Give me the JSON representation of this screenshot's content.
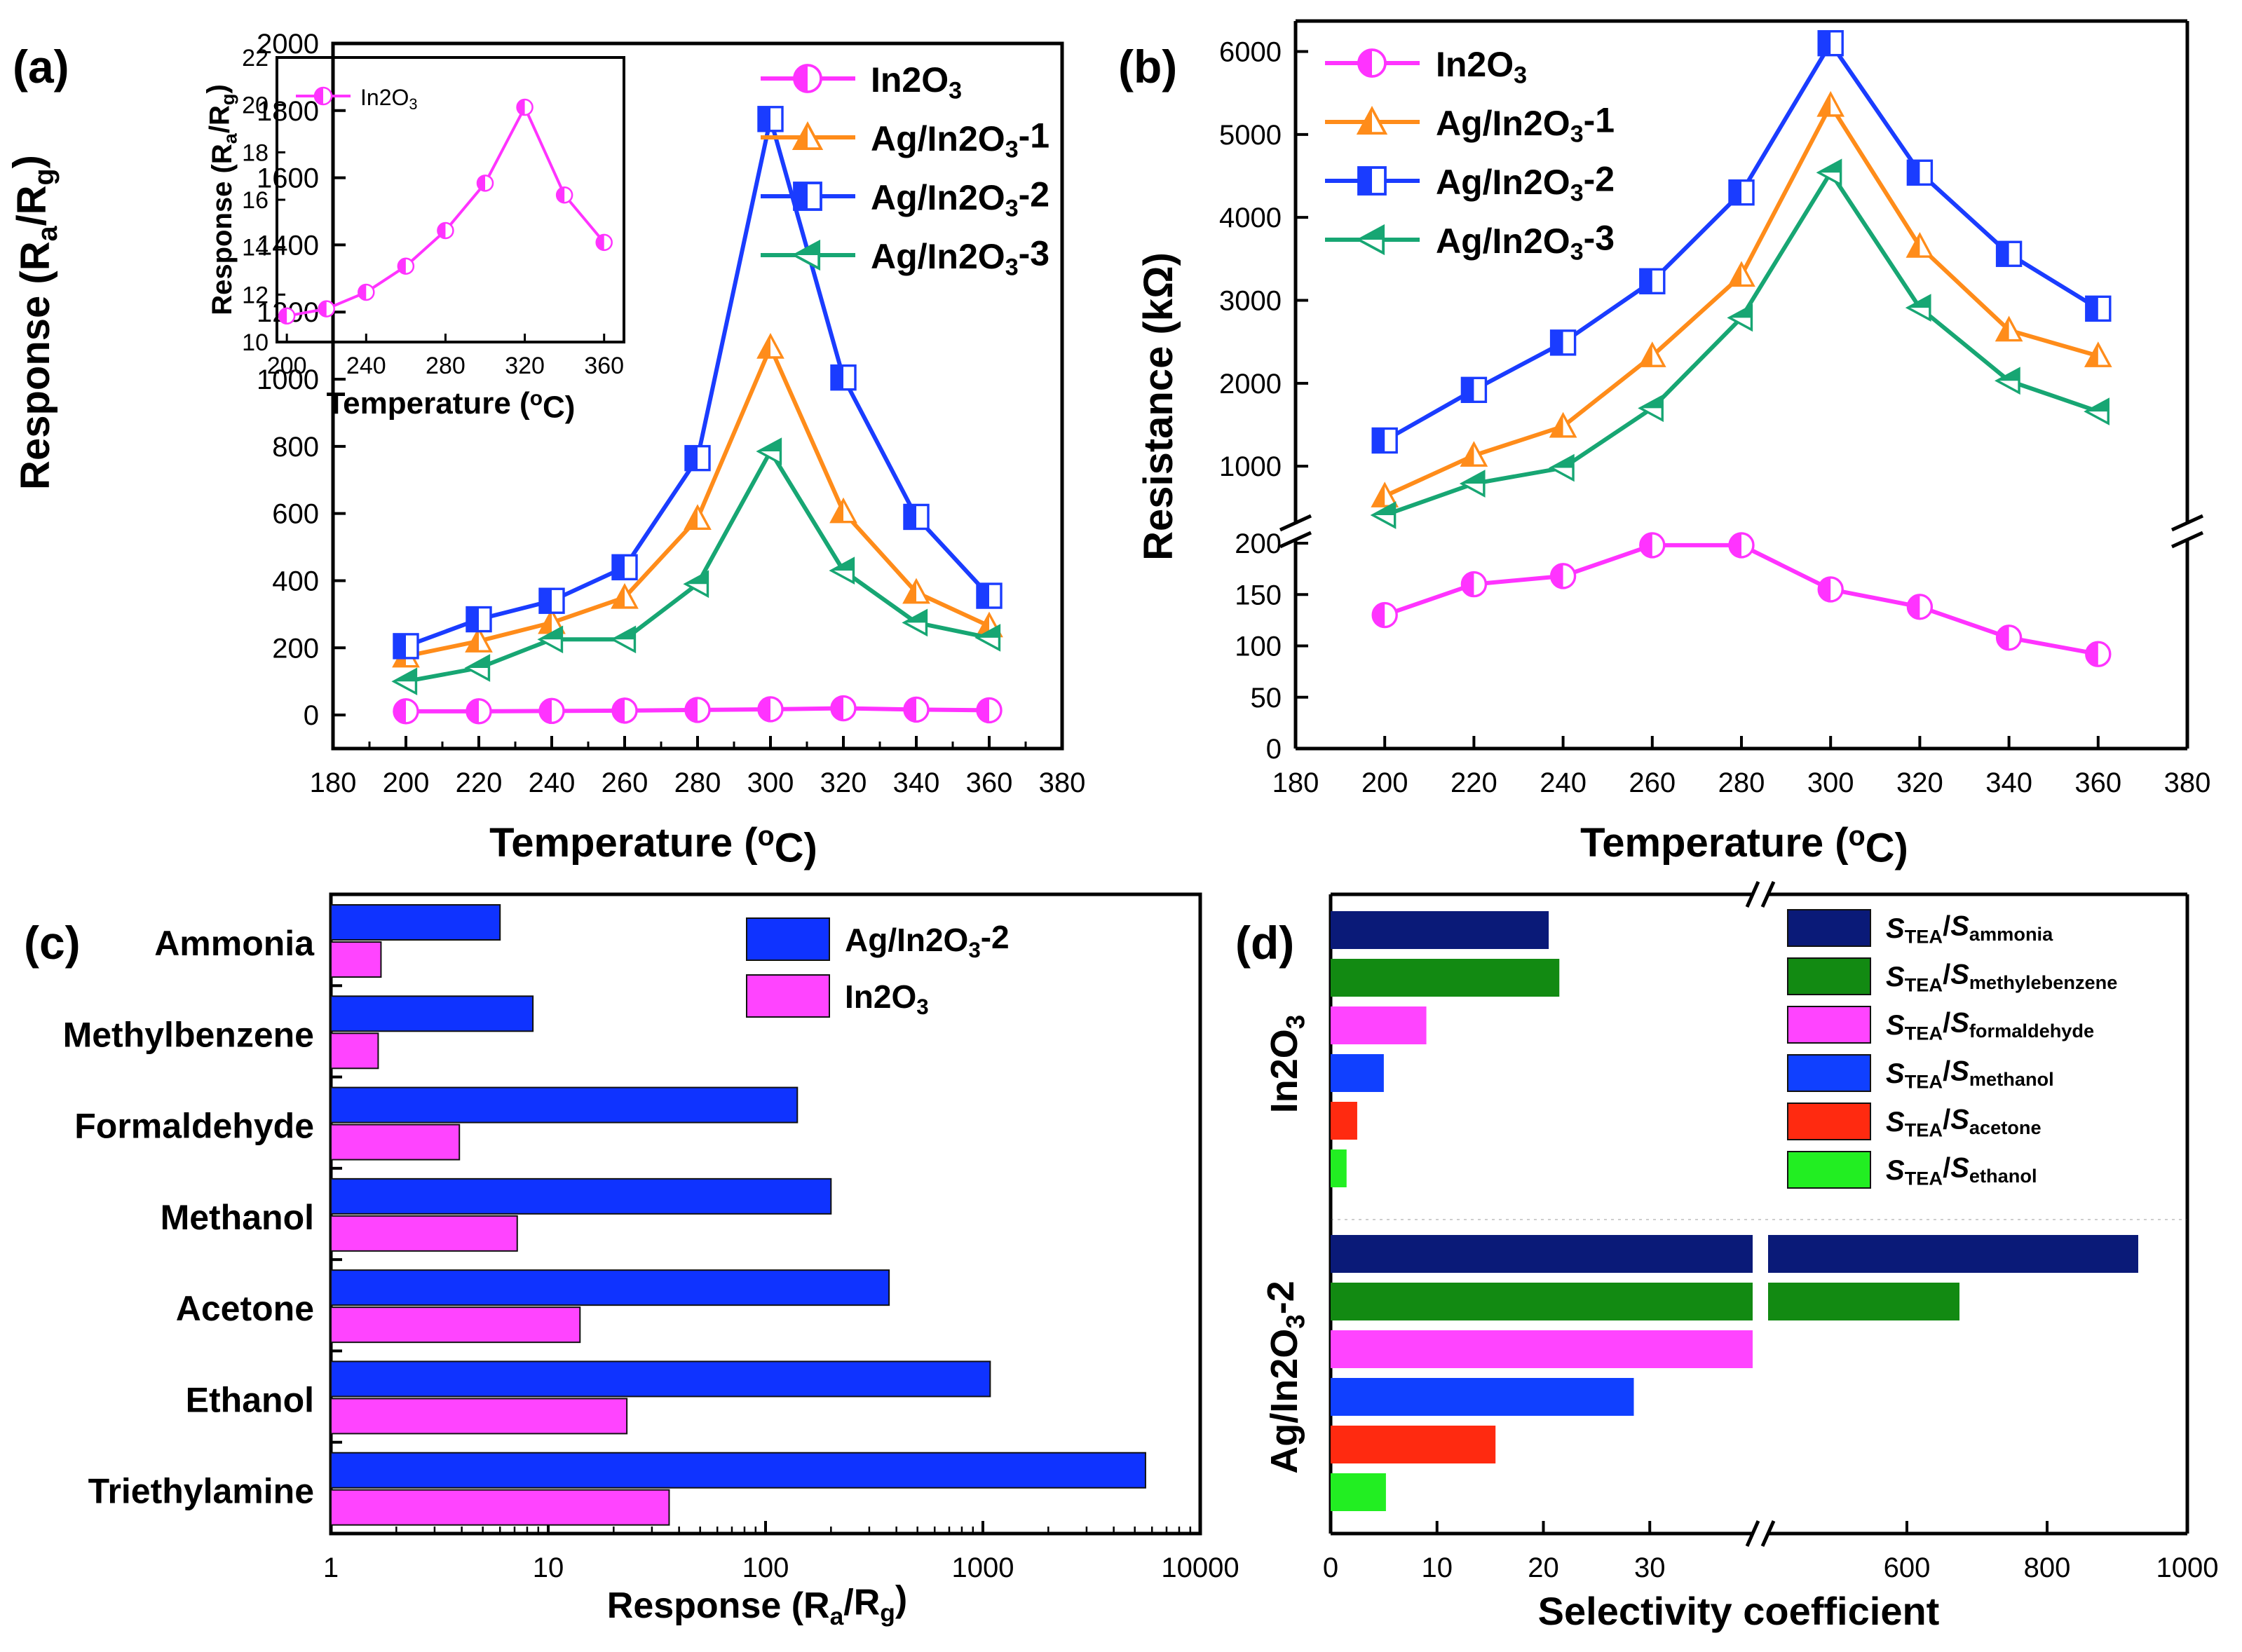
{
  "chart_data": [
    {
      "panel": "(a)",
      "type": "line",
      "xlabel": "Temperature (°C)",
      "ylabel": "Response (Ra/Rg)",
      "xlim": [
        180,
        380
      ],
      "ylim": [
        -100,
        2000
      ],
      "xticks": [
        180,
        200,
        220,
        240,
        260,
        280,
        300,
        320,
        340,
        360,
        380
      ],
      "yticks": [
        0,
        200,
        400,
        600,
        800,
        1000,
        1200,
        1400,
        1600,
        1800,
        2000
      ],
      "x": [
        200,
        220,
        240,
        260,
        280,
        300,
        320,
        340,
        360
      ],
      "series": [
        {
          "name": "In2O3",
          "marker": "circle",
          "color": "#ff33ff",
          "values": [
            11,
            11,
            12,
            13,
            15,
            17,
            20,
            16,
            14
          ]
        },
        {
          "name": "Ag/In2O3-1",
          "marker": "triangle-up",
          "color": "#ff8c1a",
          "values": [
            175,
            220,
            275,
            350,
            585,
            1095,
            605,
            365,
            265
          ]
        },
        {
          "name": "Ag/In2O3-2",
          "marker": "square",
          "color": "#1a3cff",
          "values": [
            205,
            285,
            340,
            440,
            765,
            1775,
            1005,
            590,
            355
          ]
        },
        {
          "name": "Ag/In2O3-3",
          "marker": "triangle-left",
          "color": "#17a673",
          "values": [
            100,
            140,
            225,
            225,
            390,
            785,
            430,
            275,
            230
          ]
        }
      ],
      "inset": {
        "type": "line",
        "xlabel": "Temperature (°C)",
        "ylabel": "Response (Ra/Rg)",
        "xlim": [
          195,
          370
        ],
        "ylim": [
          10,
          22
        ],
        "xticks": [
          200,
          240,
          280,
          320,
          360
        ],
        "yticks": [
          10,
          12,
          14,
          16,
          18,
          20,
          22
        ],
        "x": [
          200,
          220,
          240,
          260,
          280,
          300,
          320,
          340,
          360
        ],
        "series": [
          {
            "name": "In2O3",
            "values": [
              11.1,
              11.4,
              12.1,
              13.2,
              14.7,
              16.7,
              19.9,
              16.2,
              14.2
            ]
          }
        ]
      }
    },
    {
      "panel": "(b)",
      "type": "line",
      "xlabel": "Temperature (°C)",
      "ylabel": "Resistance (kΩ)",
      "xlim": [
        180,
        380
      ],
      "axis_break": true,
      "lower_ylim": [
        0,
        200
      ],
      "lower_yticks": [
        0,
        50,
        100,
        150,
        200
      ],
      "upper_ylim": [
        300,
        6300
      ],
      "upper_yticks": [
        1000,
        2000,
        3000,
        4000,
        5000,
        6000
      ],
      "xticks": [
        180,
        200,
        220,
        240,
        260,
        280,
        300,
        320,
        340,
        360,
        380
      ],
      "x": [
        200,
        220,
        240,
        260,
        280,
        300,
        320,
        340,
        360
      ],
      "series": [
        {
          "name": "In2O3",
          "marker": "circle",
          "color": "#ff33ff",
          "values": [
            130,
            160,
            168,
            198,
            198,
            155,
            138,
            108,
            92
          ]
        },
        {
          "name": "Ag/In2O3-1",
          "marker": "triangle-up",
          "color": "#ff8c1a",
          "values": [
            640,
            1130,
            1480,
            2330,
            3300,
            5350,
            3650,
            2640,
            2330
          ]
        },
        {
          "name": "Ag/In2O3-2",
          "marker": "square",
          "color": "#1a3cff",
          "values": [
            1310,
            1920,
            2490,
            3230,
            4300,
            6100,
            4540,
            3560,
            2900
          ]
        },
        {
          "name": "Ag/In2O3-3",
          "marker": "triangle-left",
          "color": "#17a673",
          "values": [
            410,
            790,
            980,
            1700,
            2790,
            4540,
            2910,
            2030,
            1660
          ]
        }
      ]
    },
    {
      "panel": "(c)",
      "type": "bar",
      "orientation": "horizontal",
      "xscale": "log",
      "xlabel": "Response (Ra/Rg)",
      "xlim": [
        1,
        10000
      ],
      "xticks": [
        "1",
        "10",
        "100",
        "1000",
        "10000"
      ],
      "categories": [
        "Ammonia",
        "Methylbenzene",
        "Formaldehyde",
        "Methanol",
        "Acetone",
        "Ethanol",
        "Triethylamine"
      ],
      "series": [
        {
          "name": "Ag/In2O3-2",
          "color": "#0f33ff",
          "values": [
            6,
            8.5,
            140,
            200,
            370,
            1080,
            5600
          ]
        },
        {
          "name": "In2O3",
          "color": "#ff44ff",
          "values": [
            1.7,
            1.65,
            3.9,
            7.2,
            14,
            23,
            36
          ]
        }
      ]
    },
    {
      "panel": "(d)",
      "type": "bar",
      "orientation": "horizontal",
      "axis_break": true,
      "xlabel": "Selectivity coefficient",
      "left_xlim": [
        0,
        40
      ],
      "left_xticks": [
        "0",
        "10",
        "20",
        "30"
      ],
      "right_xlim": [
        400,
        1000
      ],
      "right_xticks": [
        "600",
        "800",
        "1000"
      ],
      "groups": [
        "In2O3",
        "Ag/In2O3-2"
      ],
      "series": [
        {
          "name": "STEA/Sammonia",
          "color": "#0a1a78",
          "values": [
            20.5,
            930
          ]
        },
        {
          "name": "STEA/Smethylebenzene",
          "color": "#128a12",
          "values": [
            21.5,
            675
          ]
        },
        {
          "name": "STEA/Sformaldehyde",
          "color": "#ff44ff",
          "values": [
            9,
            40
          ]
        },
        {
          "name": "STEA/Smethanol",
          "color": "#1040ff",
          "values": [
            5,
            28.5
          ]
        },
        {
          "name": "STEA/Sacetone",
          "color": "#ff2a10",
          "values": [
            2.5,
            15.5
          ]
        },
        {
          "name": "STEA/Sethanol",
          "color": "#22ee22",
          "values": [
            1.5,
            5.2
          ]
        }
      ]
    }
  ]
}
